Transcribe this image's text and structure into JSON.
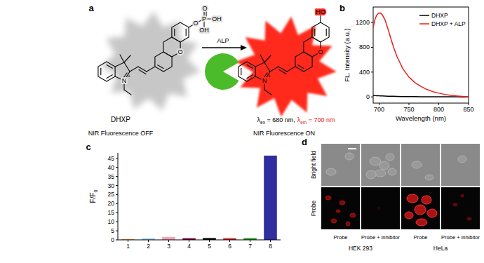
{
  "panel_labels": [
    "a",
    "b",
    "c",
    "d"
  ],
  "scheme": {
    "probe_name": "DHXP",
    "probe_state": "NIR Fluorescence OFF",
    "enzyme": "ALP",
    "product_state": "NIR Fluorescence ON",
    "excitation": [
      "λ",
      "ex",
      " = 680 nm,"
    ],
    "emission": [
      "λ",
      "em",
      " = 700 nm"
    ],
    "probe_atoms": [
      "N",
      "+",
      "O",
      "O",
      "P",
      "O",
      "OH",
      "OH"
    ],
    "product_atoms": [
      "N",
      "+",
      "O",
      "HO"
    ]
  },
  "chart_data": [
    {
      "type": "line",
      "x_label": "Wavelength (nm)",
      "y_label": "FL. Intensity (a.u.)",
      "x": [
        690,
        693,
        696,
        699,
        702,
        705,
        710,
        715,
        720,
        725,
        730,
        740,
        750,
        760,
        770,
        780,
        790,
        800,
        810,
        820,
        830,
        840,
        850
      ],
      "series": [
        {
          "name": "DHXP",
          "color": "#000000",
          "values": [
            25,
            22,
            20,
            18,
            16,
            15,
            13,
            11,
            10,
            9,
            8,
            6,
            5,
            4,
            3,
            3,
            2,
            2,
            1,
            1,
            1,
            0,
            0
          ]
        },
        {
          "name": "DHXP + ALP",
          "color": "#e8201a",
          "values": [
            1120,
            1250,
            1320,
            1350,
            1355,
            1330,
            1240,
            1090,
            930,
            780,
            650,
            450,
            320,
            230,
            170,
            120,
            85,
            60,
            40,
            25,
            15,
            7,
            2
          ]
        }
      ],
      "xlim": [
        690,
        850
      ],
      "xticks": [
        700,
        750,
        800,
        850
      ],
      "ylim": [
        -100,
        1450
      ],
      "yticks": [
        0,
        400,
        800,
        1200
      ],
      "legend": "upper right",
      "grid": false
    },
    {
      "type": "bar",
      "y_label": [
        "F/F",
        "0"
      ],
      "categories": [
        "1",
        "2",
        "3",
        "4",
        "5",
        "6",
        "7",
        "8"
      ],
      "values": [
        0.5,
        0.8,
        1.6,
        0.9,
        1.0,
        0.9,
        1.0,
        46.5
      ],
      "colors": [
        "#f4a460",
        "#87ceeb",
        "#f4a0b8",
        "#800040",
        "#000000",
        "#d62020",
        "#2ca02c",
        "#2e2e9e"
      ],
      "ylim": [
        0,
        48
      ],
      "yticks": [
        0,
        5,
        10,
        15,
        20,
        25,
        30,
        35,
        40,
        45
      ],
      "grid": false
    }
  ],
  "microscopy": {
    "row_labels": [
      "Bright field",
      "Probe"
    ],
    "column_labels": [
      "Probe",
      "Probe + inhibitor",
      "Probe",
      "Probe + inhibitor"
    ],
    "groups": [
      "HEK 293",
      "HeLa"
    ]
  }
}
